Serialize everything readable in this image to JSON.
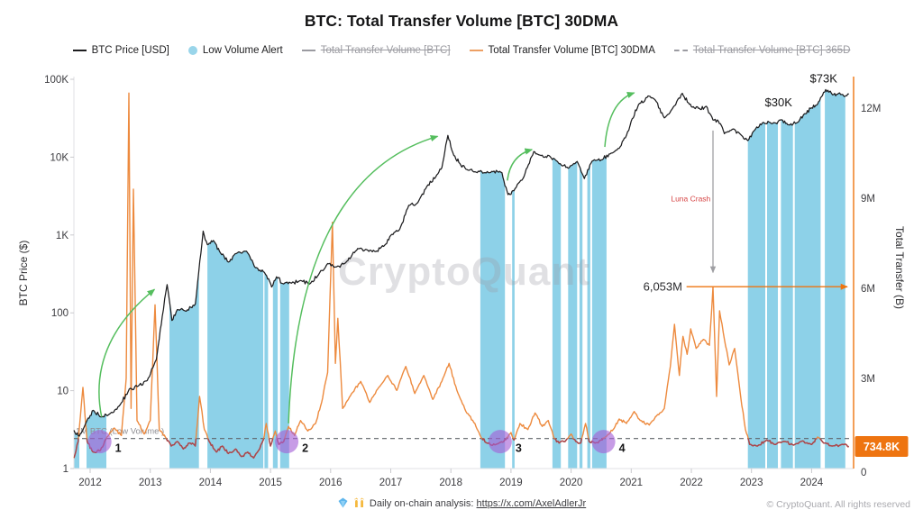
{
  "title": "BTC: Total Transfer Volume [BTC] 30DMA",
  "watermark": "CryptoQuant",
  "legend": [
    {
      "label": "BTC Price [USD]",
      "marker": "line",
      "color": "#1d1d1f",
      "disabled": false
    },
    {
      "label": "Low Volume Alert",
      "marker": "circle",
      "color": "#99d5ea",
      "disabled": false
    },
    {
      "label": "Total Transfer Volume [BTC]",
      "marker": "line",
      "color": "#9b9ba1",
      "disabled": true
    },
    {
      "label": "Total Transfer Volume [BTC] 30DMA",
      "marker": "line",
      "color": "#EDA064",
      "disabled": false
    },
    {
      "label": "Total Transfer Volume [BTC] 365D",
      "marker": "dash",
      "color": "#9b9ba1",
      "disabled": true
    }
  ],
  "footer": {
    "analysis_prefix": "Daily on-chain analysis: ",
    "analysis_link": "https://x.com/AxelAdlerJr",
    "copyright": "© CryptoQuant. All rights reserved"
  },
  "colors": {
    "price": "#1d1d1f",
    "volume": "#ED8A3E",
    "volume_low": "#A8474F",
    "band": "#8DD1E8",
    "threshold": "#5f6368",
    "green": "#55BE5E",
    "purple": "#A55FD6",
    "red_label": "#D64545",
    "gray_arrow": "#9f9fa3",
    "badge": "#EE7410",
    "axis": "#e2e2e6",
    "tick_text": "#3c3c40",
    "watermark": "#9b9ba4"
  },
  "chart_data": {
    "type": "line",
    "title": "BTC: Total Transfer Volume [BTC] 30DMA",
    "x_axis": {
      "range": [
        2011.72,
        2024.7
      ],
      "ticks": [
        2012,
        2013,
        2014,
        2015,
        2016,
        2017,
        2018,
        2019,
        2020,
        2021,
        2022,
        2023,
        2024
      ]
    },
    "y_left": {
      "label": "BTC Price ($)",
      "scale": "log",
      "range": [
        1,
        100000
      ],
      "ticks": [
        "100K",
        "10K",
        "1K",
        "100",
        "10",
        "1"
      ]
    },
    "y_right": {
      "label": "Total Transfer (B)",
      "scale": "linear",
      "range_m": [
        0,
        12.6
      ],
      "ticks": [
        "12M",
        "9M",
        "6M",
        "3M",
        "0"
      ],
      "zero_label": "0"
    },
    "threshold": {
      "volume_m": 1,
      "label": "1M BTC (Low Volume )"
    },
    "current_value_badge": "734.8K",
    "series": [
      {
        "name": "BTC Price [USD]",
        "axis": "left",
        "unit": "USD",
        "points": [
          [
            2011.73,
            3.1
          ],
          [
            2011.82,
            2.6
          ],
          [
            2011.95,
            4.2
          ],
          [
            2012.05,
            5.6
          ],
          [
            2012.18,
            4.6
          ],
          [
            2012.32,
            5.0
          ],
          [
            2012.5,
            6.6
          ],
          [
            2012.65,
            10.5
          ],
          [
            2012.8,
            11.5
          ],
          [
            2012.95,
            13.5
          ],
          [
            2013.1,
            25
          ],
          [
            2013.2,
            90
          ],
          [
            2013.28,
            230
          ],
          [
            2013.36,
            80
          ],
          [
            2013.45,
            110
          ],
          [
            2013.6,
            105
          ],
          [
            2013.75,
            130
          ],
          [
            2013.88,
            1120
          ],
          [
            2013.95,
            750
          ],
          [
            2014.05,
            850
          ],
          [
            2014.15,
            620
          ],
          [
            2014.3,
            450
          ],
          [
            2014.45,
            590
          ],
          [
            2014.6,
            620
          ],
          [
            2014.75,
            380
          ],
          [
            2014.9,
            330
          ],
          [
            2015.02,
            215
          ],
          [
            2015.1,
            290
          ],
          [
            2015.22,
            235
          ],
          [
            2015.35,
            240
          ],
          [
            2015.5,
            260
          ],
          [
            2015.65,
            235
          ],
          [
            2015.8,
            310
          ],
          [
            2015.95,
            430
          ],
          [
            2016.1,
            390
          ],
          [
            2016.25,
            440
          ],
          [
            2016.45,
            670
          ],
          [
            2016.6,
            650
          ],
          [
            2016.75,
            610
          ],
          [
            2016.9,
            740
          ],
          [
            2017.0,
            990
          ],
          [
            2017.15,
            1190
          ],
          [
            2017.3,
            2400
          ],
          [
            2017.45,
            2600
          ],
          [
            2017.6,
            4200
          ],
          [
            2017.75,
            5600
          ],
          [
            2017.85,
            7300
          ],
          [
            2017.95,
            19000
          ],
          [
            2018.05,
            10500
          ],
          [
            2018.15,
            8300
          ],
          [
            2018.25,
            7000
          ],
          [
            2018.4,
            6500
          ],
          [
            2018.55,
            6300
          ],
          [
            2018.7,
            6500
          ],
          [
            2018.85,
            6300
          ],
          [
            2018.95,
            3300
          ],
          [
            2019.05,
            3700
          ],
          [
            2019.2,
            5300
          ],
          [
            2019.38,
            11800
          ],
          [
            2019.5,
            10500
          ],
          [
            2019.65,
            10200
          ],
          [
            2019.8,
            8200
          ],
          [
            2019.95,
            7200
          ],
          [
            2020.1,
            8800
          ],
          [
            2020.22,
            5300
          ],
          [
            2020.35,
            8900
          ],
          [
            2020.5,
            9200
          ],
          [
            2020.65,
            11000
          ],
          [
            2020.8,
            13000
          ],
          [
            2020.92,
            19000
          ],
          [
            2021.0,
            29000
          ],
          [
            2021.12,
            47000
          ],
          [
            2021.28,
            61000
          ],
          [
            2021.4,
            54000
          ],
          [
            2021.55,
            32000
          ],
          [
            2021.7,
            44000
          ],
          [
            2021.85,
            66000
          ],
          [
            2021.95,
            50000
          ],
          [
            2022.05,
            43000
          ],
          [
            2022.15,
            41000
          ],
          [
            2022.25,
            45000
          ],
          [
            2022.36,
            30000
          ],
          [
            2022.45,
            29000
          ],
          [
            2022.55,
            20000
          ],
          [
            2022.7,
            23000
          ],
          [
            2022.82,
            19500
          ],
          [
            2022.94,
            16300
          ],
          [
            2023.05,
            22000
          ],
          [
            2023.2,
            28000
          ],
          [
            2023.35,
            27000
          ],
          [
            2023.5,
            30200
          ],
          [
            2023.62,
            26000
          ],
          [
            2023.75,
            27500
          ],
          [
            2023.88,
            36000
          ],
          [
            2024.0,
            43000
          ],
          [
            2024.1,
            48000
          ],
          [
            2024.2,
            68000
          ],
          [
            2024.27,
            72500
          ],
          [
            2024.35,
            63000
          ],
          [
            2024.45,
            66000
          ],
          [
            2024.55,
            60000
          ],
          [
            2024.62,
            65000
          ]
        ]
      },
      {
        "name": "Total Transfer Volume [BTC] 30DMA",
        "axis": "right",
        "unit": "M",
        "points": [
          [
            2011.73,
            0.35
          ],
          [
            2011.8,
            0.9
          ],
          [
            2011.88,
            2.7
          ],
          [
            2011.95,
            0.9
          ],
          [
            2012.05,
            0.55
          ],
          [
            2012.17,
            0.6
          ],
          [
            2012.28,
            1.05
          ],
          [
            2012.4,
            1.35
          ],
          [
            2012.52,
            1.1
          ],
          [
            2012.6,
            3.0
          ],
          [
            2012.645,
            12.5
          ],
          [
            2012.68,
            2.0
          ],
          [
            2012.72,
            9.3
          ],
          [
            2012.78,
            1.6
          ],
          [
            2012.9,
            1.15
          ],
          [
            2013.0,
            1.6
          ],
          [
            2013.08,
            5.45
          ],
          [
            2013.15,
            1.3
          ],
          [
            2013.25,
            1.05
          ],
          [
            2013.35,
            0.75
          ],
          [
            2013.45,
            0.9
          ],
          [
            2013.55,
            0.65
          ],
          [
            2013.65,
            0.85
          ],
          [
            2013.75,
            0.75
          ],
          [
            2013.82,
            2.4
          ],
          [
            2013.9,
            1.3
          ],
          [
            2013.98,
            0.9
          ],
          [
            2014.1,
            0.55
          ],
          [
            2014.2,
            0.75
          ],
          [
            2014.3,
            0.5
          ],
          [
            2014.42,
            0.65
          ],
          [
            2014.52,
            0.4
          ],
          [
            2014.62,
            0.55
          ],
          [
            2014.72,
            0.35
          ],
          [
            2014.8,
            0.6
          ],
          [
            2014.88,
            0.95
          ],
          [
            2014.93,
            1.5
          ],
          [
            2015.0,
            0.75
          ],
          [
            2015.08,
            1.25
          ],
          [
            2015.14,
            0.8
          ],
          [
            2015.22,
            0.9
          ],
          [
            2015.3,
            1.4
          ],
          [
            2015.4,
            1.1
          ],
          [
            2015.5,
            1.6
          ],
          [
            2015.62,
            1.25
          ],
          [
            2015.75,
            1.5
          ],
          [
            2015.85,
            2.2
          ],
          [
            2015.95,
            3.2
          ],
          [
            2016.03,
            8.2
          ],
          [
            2016.08,
            3.5
          ],
          [
            2016.12,
            5.0
          ],
          [
            2016.2,
            2.0
          ],
          [
            2016.35,
            2.5
          ],
          [
            2016.5,
            2.9
          ],
          [
            2016.65,
            2.2
          ],
          [
            2016.8,
            2.7
          ],
          [
            2016.95,
            3.1
          ],
          [
            2017.1,
            2.6
          ],
          [
            2017.25,
            3.4
          ],
          [
            2017.4,
            2.5
          ],
          [
            2017.55,
            3.1
          ],
          [
            2017.7,
            2.3
          ],
          [
            2017.85,
            2.9
          ],
          [
            2017.97,
            3.5
          ],
          [
            2018.1,
            2.6
          ],
          [
            2018.25,
            1.9
          ],
          [
            2018.4,
            1.5
          ],
          [
            2018.5,
            1.05
          ],
          [
            2018.6,
            0.85
          ],
          [
            2018.75,
            0.8
          ],
          [
            2018.88,
            0.9
          ],
          [
            2019.0,
            1.2
          ],
          [
            2019.05,
            0.95
          ],
          [
            2019.15,
            1.5
          ],
          [
            2019.28,
            1.3
          ],
          [
            2019.4,
            1.85
          ],
          [
            2019.52,
            1.4
          ],
          [
            2019.62,
            1.6
          ],
          [
            2019.72,
            1.0
          ],
          [
            2019.8,
            0.85
          ],
          [
            2019.9,
            0.9
          ],
          [
            2020.0,
            1.15
          ],
          [
            2020.08,
            0.9
          ],
          [
            2020.16,
            0.85
          ],
          [
            2020.24,
            1.5
          ],
          [
            2020.3,
            0.9
          ],
          [
            2020.4,
            0.85
          ],
          [
            2020.5,
            0.95
          ],
          [
            2020.6,
            1.1
          ],
          [
            2020.7,
            1.3
          ],
          [
            2020.8,
            1.65
          ],
          [
            2020.92,
            1.5
          ],
          [
            2021.05,
            1.9
          ],
          [
            2021.15,
            1.6
          ],
          [
            2021.3,
            1.45
          ],
          [
            2021.42,
            1.75
          ],
          [
            2021.55,
            2.0
          ],
          [
            2021.65,
            3.4
          ],
          [
            2021.72,
            4.8
          ],
          [
            2021.8,
            3.1
          ],
          [
            2021.86,
            4.4
          ],
          [
            2021.93,
            3.8
          ],
          [
            2021.99,
            4.65
          ],
          [
            2022.08,
            4.0
          ],
          [
            2022.2,
            4.3
          ],
          [
            2022.3,
            4.1
          ],
          [
            2022.36,
            6.05
          ],
          [
            2022.42,
            2.4
          ],
          [
            2022.47,
            5.25
          ],
          [
            2022.55,
            4.3
          ],
          [
            2022.63,
            3.45
          ],
          [
            2022.72,
            4.0
          ],
          [
            2022.82,
            2.4
          ],
          [
            2022.9,
            1.3
          ],
          [
            2022.97,
            0.8
          ],
          [
            2023.1,
            0.75
          ],
          [
            2023.25,
            0.95
          ],
          [
            2023.4,
            0.8
          ],
          [
            2023.55,
            0.9
          ],
          [
            2023.7,
            0.78
          ],
          [
            2023.85,
            0.92
          ],
          [
            2024.0,
            0.8
          ],
          [
            2024.1,
            1.05
          ],
          [
            2024.2,
            0.85
          ],
          [
            2024.35,
            0.75
          ],
          [
            2024.5,
            0.8
          ],
          [
            2024.62,
            0.735
          ]
        ]
      }
    ],
    "alert_bands": [
      [
        2011.73,
        2011.82
      ],
      [
        2011.94,
        2012.27
      ],
      [
        2013.32,
        2013.81
      ],
      [
        2013.95,
        2014.88
      ],
      [
        2014.9,
        2014.96
      ],
      [
        2015.04,
        2015.12
      ],
      [
        2015.16,
        2015.31
      ],
      [
        2018.49,
        2018.9
      ],
      [
        2019.02,
        2019.06
      ],
      [
        2019.69,
        2019.83
      ],
      [
        2019.95,
        2020.1
      ],
      [
        2020.14,
        2020.19
      ],
      [
        2020.27,
        2020.32
      ],
      [
        2020.35,
        2020.59
      ],
      [
        2022.94,
        2023.23
      ],
      [
        2023.26,
        2023.44
      ],
      [
        2023.49,
        2023.69
      ],
      [
        2023.72,
        2024.15
      ],
      [
        2024.22,
        2024.56
      ]
    ],
    "numbered_markers": [
      {
        "label": "1",
        "year": 2012.16
      },
      {
        "label": "2",
        "year": 2015.27
      },
      {
        "label": "3",
        "year": 2018.82
      },
      {
        "label": "4",
        "year": 2020.54
      }
    ],
    "green_arrows": [
      {
        "from": [
          2012.19,
          4.6
        ],
        "ctrl": [
          2011.95,
          40
        ],
        "to": [
          2013.07,
          200
        ]
      },
      {
        "from": [
          2015.3,
          3.8
        ],
        "ctrl": [
          2015.45,
          5500
        ],
        "to": [
          2017.78,
          18500
        ]
      },
      {
        "from": [
          2018.94,
          5000
        ],
        "ctrl": [
          2018.99,
          10500
        ],
        "to": [
          2019.35,
          12500
        ]
      },
      {
        "from": [
          2020.56,
          13500
        ],
        "ctrl": [
          2020.62,
          52000
        ],
        "to": [
          2021.05,
          67000
        ]
      }
    ],
    "annotations": {
      "luna": {
        "text": "Luna Crash",
        "arrow_year": 2022.36,
        "arrow_from_price": 22000,
        "arrow_to_price": 330,
        "label_year": 2021.99,
        "label_price": 2700
      },
      "transfer_peak": {
        "text": "6,053M",
        "volume_m": 6.053,
        "text_year": 2021.85,
        "arrow_from_year": 2021.92
      },
      "price_labels": [
        {
          "text": "$30K",
          "year": 2023.45,
          "price": 45000
        },
        {
          "text": "$73K",
          "year": 2024.2,
          "price": 91000
        }
      ]
    }
  }
}
